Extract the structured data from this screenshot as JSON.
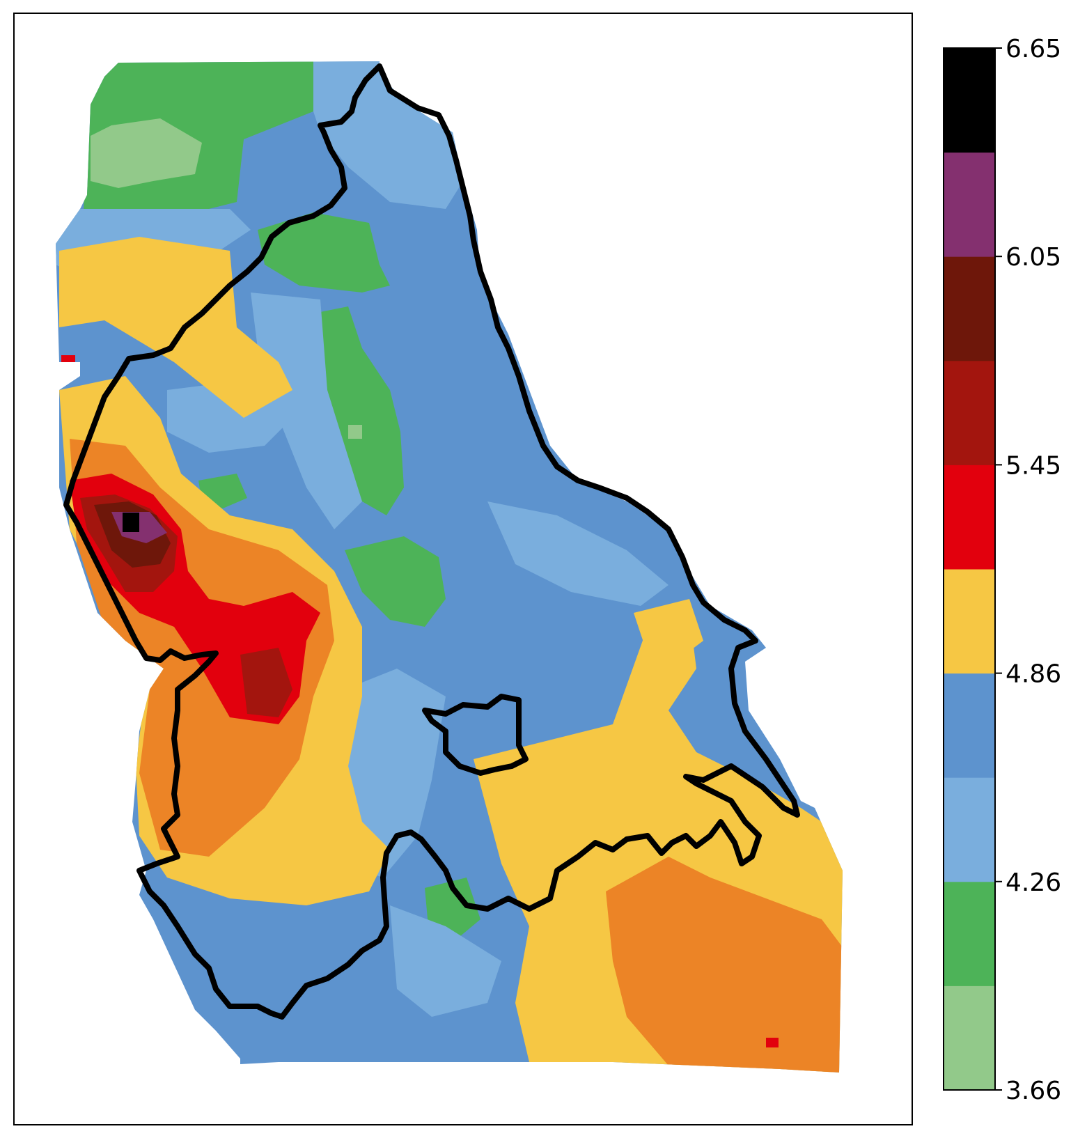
{
  "colorbar": {
    "ticks": [
      "6.65",
      "6.05",
      "5.45",
      "4.86",
      "4.26",
      "3.66"
    ],
    "bins": [
      {
        "color": "#92c98a",
        "from": 3.66,
        "to": 3.96
      },
      {
        "color": "#4db358",
        "from": 3.96,
        "to": 4.26
      },
      {
        "color": "#7aaedd",
        "from": 4.26,
        "to": 4.56
      },
      {
        "color": "#5d93ce",
        "from": 4.56,
        "to": 4.86
      },
      {
        "color": "#f6c744",
        "from": 4.86,
        "to": 5.16
      },
      {
        "color": "#e2000d",
        "from": 5.16,
        "to": 5.45
      },
      {
        "color": "#a3150e",
        "from": 5.45,
        "to": 5.75
      },
      {
        "color": "#6e170a",
        "from": 5.75,
        "to": 6.05
      },
      {
        "color": "#84306f",
        "from": 6.05,
        "to": 6.35
      },
      {
        "color": "#000000",
        "from": 6.35,
        "to": 6.65
      }
    ]
  },
  "map": {
    "colors": {
      "light_green": "#92c98a",
      "green": "#4db358",
      "light_blue": "#7aaedd",
      "blue": "#5d93ce",
      "yellow": "#f6c744",
      "orange": "#ec8426",
      "red": "#e2000d",
      "dark_red": "#a3150e",
      "darker_red": "#6e170a",
      "purple": "#84306f",
      "black": "#000000"
    },
    "boundary_color": "#000000"
  }
}
